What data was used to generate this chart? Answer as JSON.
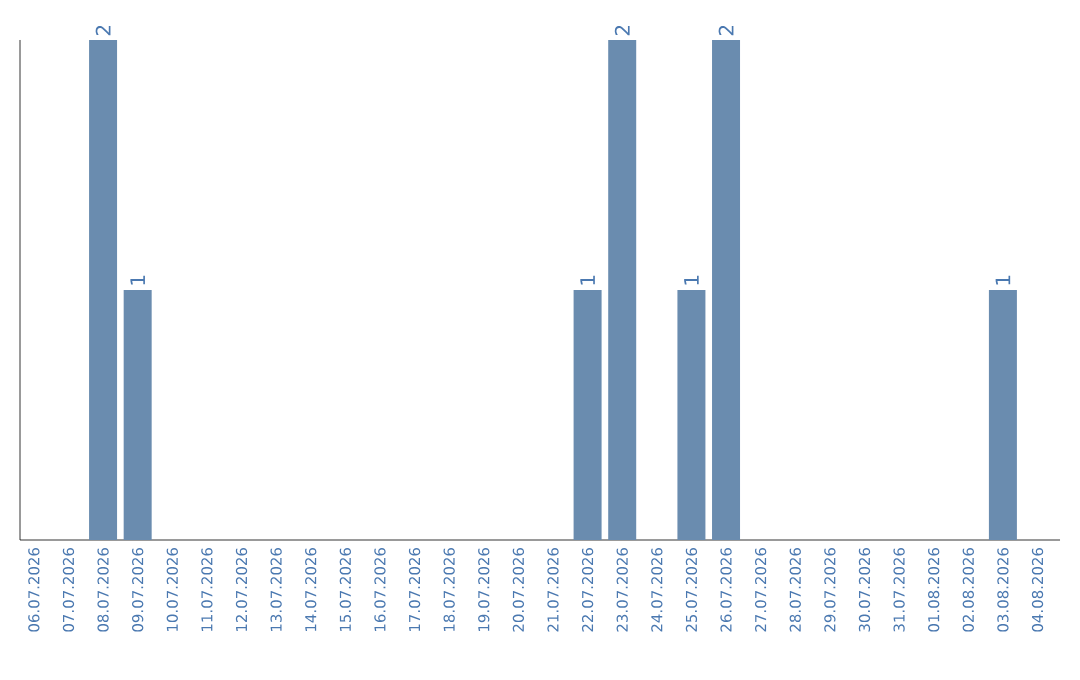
{
  "chart_data": {
    "type": "bar",
    "categories": [
      "06.07.2026",
      "07.07.2026",
      "08.07.2026",
      "09.07.2026",
      "10.07.2026",
      "11.07.2026",
      "12.07.2026",
      "13.07.2026",
      "14.07.2026",
      "15.07.2026",
      "16.07.2026",
      "17.07.2026",
      "18.07.2026",
      "19.07.2026",
      "20.07.2026",
      "21.07.2026",
      "22.07.2026",
      "23.07.2026",
      "24.07.2026",
      "25.07.2026",
      "26.07.2026",
      "27.07.2026",
      "28.07.2026",
      "29.07.2026",
      "30.07.2026",
      "31.07.2026",
      "01.08.2026",
      "02.08.2026",
      "03.08.2026",
      "04.08.2026"
    ],
    "values": [
      0,
      0,
      2,
      1,
      0,
      0,
      0,
      0,
      0,
      0,
      0,
      0,
      0,
      0,
      0,
      0,
      1,
      2,
      0,
      1,
      2,
      0,
      0,
      0,
      0,
      0,
      0,
      0,
      1,
      0
    ],
    "value_labels": [
      null,
      null,
      "2",
      "1",
      null,
      null,
      null,
      null,
      null,
      null,
      null,
      null,
      null,
      null,
      null,
      null,
      "1",
      "2",
      null,
      "1",
      "2",
      null,
      null,
      null,
      null,
      null,
      null,
      null,
      "1",
      null
    ],
    "color": "#6a8caf"
  }
}
